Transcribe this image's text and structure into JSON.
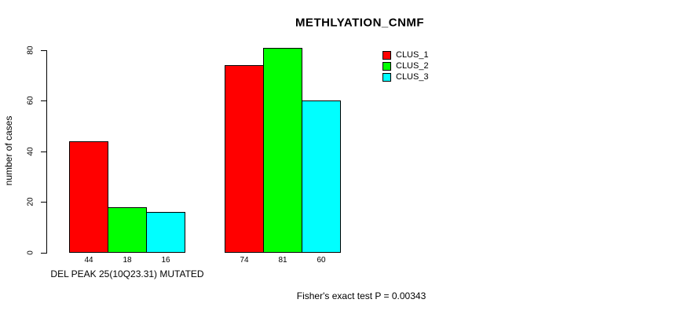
{
  "chart_data": {
    "type": "bar",
    "title": "METHLYATION_CNMF",
    "ylabel": "number of cases",
    "group_label": "DEL PEAK 25(10Q23.31) MUTATED",
    "categories": [
      "DEL PEAK 25(10Q23.31) MUTATED",
      ""
    ],
    "series": [
      {
        "name": "CLUS_1",
        "color": "#FF0000",
        "values": [
          44,
          74
        ]
      },
      {
        "name": "CLUS_2",
        "color": "#00FF00",
        "values": [
          18,
          81
        ]
      },
      {
        "name": "CLUS_3",
        "color": "#00FFFF",
        "values": [
          16,
          60
        ]
      }
    ],
    "bar_value_labels": [
      [
        "44",
        "18",
        "16"
      ],
      [
        "74",
        "81",
        "60"
      ]
    ],
    "yticks": [
      "0",
      "20",
      "40",
      "60",
      "80"
    ],
    "ylim": [
      0,
      80
    ],
    "grid": false,
    "legend_position": "top-right",
    "legend": [
      "CLUS_1",
      "CLUS_2",
      "CLUS_3"
    ],
    "annotation": "Fisher's exact test P = 0.00343",
    "colors": {
      "axis": "#000000",
      "text": "#000000",
      "background": "#FFFFFF"
    }
  }
}
